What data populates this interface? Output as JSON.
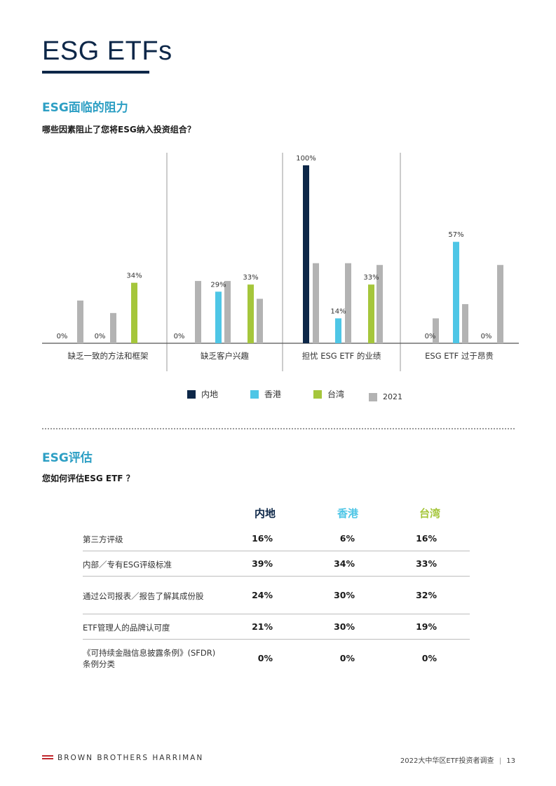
{
  "page_title": "ESG ETFs",
  "section1": {
    "heading": "ESG面临的阻力",
    "question": "哪些因素阻止了您将ESG纳入投资组合？"
  },
  "chart_data": {
    "type": "bar",
    "categories": [
      "缺乏一致的方法和框架",
      "缺乏客户兴趣",
      "担忧 ESG ETF 的业绩",
      "ESG ETF 过于昂贵"
    ],
    "series": [
      {
        "name": "内地",
        "color": "#0d2748",
        "values": [
          0,
          0,
          100,
          0
        ]
      },
      {
        "name": "香港",
        "color": "#4ec6e6",
        "values": [
          0,
          29,
          14,
          57
        ]
      },
      {
        "name": "台湾",
        "color": "#a5c63b",
        "values": [
          34,
          33,
          33,
          0
        ]
      },
      {
        "name": "2021",
        "color": "#b3b3b3",
        "values": [
          24,
          33,
          42,
          41
        ]
      }
    ],
    "data_labels": [
      {
        "category": 0,
        "series": 0,
        "text": "0%"
      },
      {
        "category": 0,
        "series": 1,
        "text": "0%"
      },
      {
        "category": 0,
        "series": 2,
        "text": "34%"
      },
      {
        "category": 1,
        "series": 0,
        "text": "0%"
      },
      {
        "category": 1,
        "series": 1,
        "text": "29%"
      },
      {
        "category": 1,
        "series": 2,
        "text": "33%"
      },
      {
        "category": 2,
        "series": 0,
        "text": "100%"
      },
      {
        "category": 2,
        "series": 1,
        "text": "14%"
      },
      {
        "category": 2,
        "series": 2,
        "text": "33%"
      },
      {
        "category": 3,
        "series": 0,
        "text": "0%"
      },
      {
        "category": 3,
        "series": 1,
        "text": "57%"
      },
      {
        "category": 3,
        "series": 2,
        "text": "0%"
      }
    ],
    "ylim": [
      0,
      100
    ],
    "grid": false,
    "legend_position": "bottom"
  },
  "section2": {
    "heading": "ESG评估",
    "question": "您如何评估ESG ETF ？"
  },
  "table": {
    "columns": [
      {
        "label": "内地",
        "color": "#0d2748"
      },
      {
        "label": "香港",
        "color": "#4ec6e6"
      },
      {
        "label": "台湾",
        "color": "#a5c63b"
      }
    ],
    "rows": [
      {
        "label": "第三方评级",
        "values": [
          "16%",
          "6%",
          "16%"
        ]
      },
      {
        "label": "内部／专有ESG评级标准",
        "values": [
          "39%",
          "34%",
          "33%"
        ]
      },
      {
        "label": "通过公司报表／报告了解其成份股",
        "values": [
          "24%",
          "30%",
          "32%"
        ]
      },
      {
        "label": "ETF管理人的品牌认可度",
        "values": [
          "21%",
          "30%",
          "19%"
        ]
      },
      {
        "label": "《可持续金融信息披露条例》(SFDR)",
        "label_line2": "条例分类",
        "values": [
          "0%",
          "0%",
          "0%"
        ]
      }
    ]
  },
  "footer": {
    "brand": "BROWN BROTHERS HARRIMAN",
    "report": "2022大中华区ETF投资者调查",
    "page_number": "13"
  }
}
